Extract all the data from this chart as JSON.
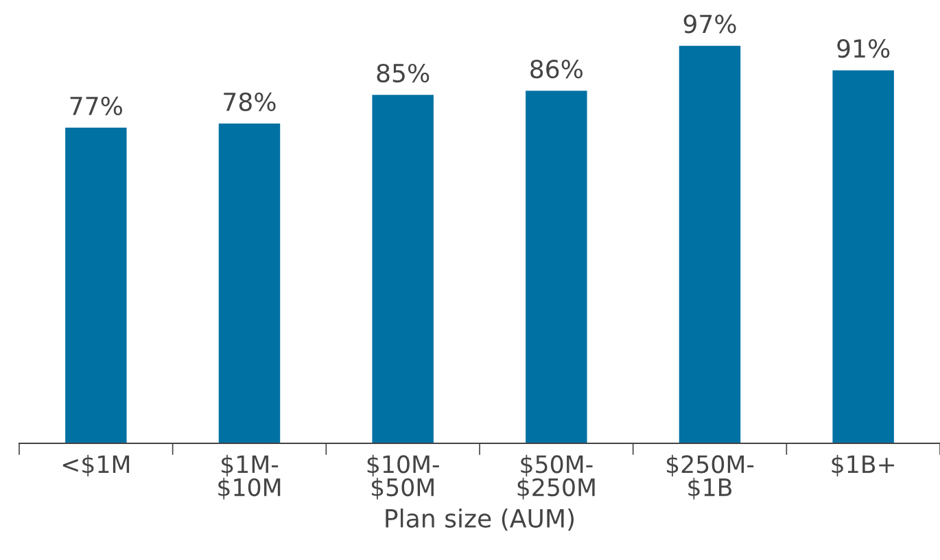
{
  "chart_data": {
    "type": "bar",
    "xlabel": "Plan size (AUM)",
    "categories": [
      "<$1M",
      "$1M-\n$10M",
      "$10M-\n$50M",
      "$50M-\n$250M",
      "$250M-\n$1B",
      "$1B+"
    ],
    "values": [
      77,
      78,
      85,
      86,
      97,
      91
    ],
    "value_labels": [
      "77%",
      "78%",
      "85%",
      "86%",
      "97%",
      "91%"
    ],
    "color": "#0071a3",
    "grid": false,
    "legend": false
  }
}
